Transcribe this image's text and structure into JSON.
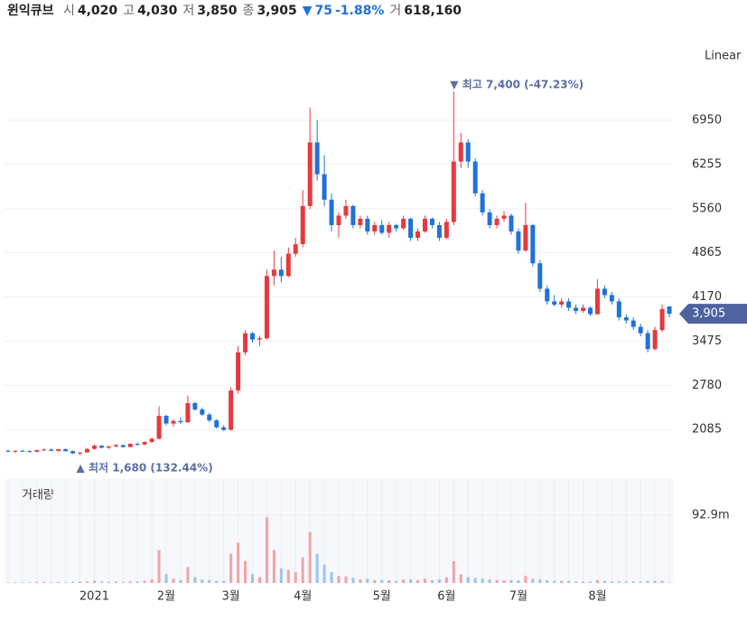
{
  "header": {
    "name": "윈익큐브",
    "fields": [
      {
        "label": "시",
        "value": "4,020"
      },
      {
        "label": "고",
        "value": "4,030"
      },
      {
        "label": "저",
        "value": "3,850"
      },
      {
        "label": "종",
        "value": "3,905"
      }
    ],
    "change": "75",
    "change_pct": "-1.88%",
    "volume_label": "거",
    "volume": "618,160"
  },
  "chart_data": {
    "type": "candlestick",
    "scale_label": "Linear",
    "volume_title": "거래량",
    "up_color": "#e5393e",
    "down_color": "#1f72d8",
    "volume_up_color": "#f2a3a6",
    "volume_down_color": "#9cc3ee",
    "ylim": [
      1448,
      8414
    ],
    "yticks": [
      2085,
      2780,
      3475,
      4170,
      4865,
      5560,
      6255,
      6950
    ],
    "vlim": [
      0,
      142
    ],
    "vticks": [
      {
        "value": 92.9,
        "label": "92.9m"
      }
    ],
    "high_note": {
      "label": "최고",
      "value": 7400,
      "value_label": "7,400",
      "change_label": "(-47.23%)"
    },
    "low_note": {
      "label": "최저",
      "value": 1680,
      "value_label": "1,680",
      "change_label": "(132.44%)"
    },
    "price_tag": {
      "value": 3905,
      "label": "3,905"
    },
    "categories": [
      null,
      null,
      null,
      null,
      null,
      null,
      null,
      null,
      null,
      null,
      null,
      null,
      "2021",
      null,
      null,
      null,
      null,
      null,
      null,
      null,
      null,
      null,
      "2월",
      null,
      null,
      null,
      null,
      null,
      null,
      null,
      null,
      "3월",
      null,
      null,
      null,
      null,
      null,
      null,
      null,
      null,
      null,
      "4월",
      null,
      null,
      null,
      null,
      null,
      null,
      null,
      null,
      null,
      null,
      "5월",
      null,
      null,
      null,
      null,
      null,
      null,
      null,
      null,
      "6월",
      null,
      null,
      null,
      null,
      null,
      null,
      null,
      null,
      null,
      "7월",
      null,
      null,
      null,
      null,
      null,
      null,
      null,
      null,
      null,
      null,
      "8월",
      null,
      null,
      null,
      null,
      null,
      null,
      null,
      null,
      null,
      null
    ],
    "candles": [
      {
        "o": 1750,
        "h": 1770,
        "l": 1730,
        "c": 1740,
        "v": 1
      },
      {
        "o": 1740,
        "h": 1760,
        "l": 1720,
        "c": 1750,
        "v": 1
      },
      {
        "o": 1750,
        "h": 1770,
        "l": 1735,
        "c": 1745,
        "v": 1
      },
      {
        "o": 1745,
        "h": 1760,
        "l": 1725,
        "c": 1735,
        "v": 1
      },
      {
        "o": 1735,
        "h": 1770,
        "l": 1730,
        "c": 1760,
        "v": 1.5
      },
      {
        "o": 1760,
        "h": 1790,
        "l": 1750,
        "c": 1770,
        "v": 1.5
      },
      {
        "o": 1770,
        "h": 1790,
        "l": 1745,
        "c": 1750,
        "v": 1
      },
      {
        "o": 1750,
        "h": 1780,
        "l": 1740,
        "c": 1775,
        "v": 1.5
      },
      {
        "o": 1775,
        "h": 1790,
        "l": 1740,
        "c": 1745,
        "v": 1
      },
      {
        "o": 1745,
        "h": 1755,
        "l": 1700,
        "c": 1710,
        "v": 1.5
      },
      {
        "o": 1710,
        "h": 1730,
        "l": 1680,
        "c": 1725,
        "v": 2
      },
      {
        "o": 1725,
        "h": 1790,
        "l": 1720,
        "c": 1780,
        "v": 2
      },
      {
        "o": 1780,
        "h": 1850,
        "l": 1770,
        "c": 1830,
        "v": 3
      },
      {
        "o": 1830,
        "h": 1840,
        "l": 1790,
        "c": 1800,
        "v": 2
      },
      {
        "o": 1800,
        "h": 1830,
        "l": 1780,
        "c": 1820,
        "v": 1.5
      },
      {
        "o": 1820,
        "h": 1860,
        "l": 1810,
        "c": 1840,
        "v": 2
      },
      {
        "o": 1840,
        "h": 1850,
        "l": 1800,
        "c": 1810,
        "v": 1.5
      },
      {
        "o": 1810,
        "h": 1870,
        "l": 1805,
        "c": 1860,
        "v": 2
      },
      {
        "o": 1860,
        "h": 1880,
        "l": 1830,
        "c": 1850,
        "v": 2
      },
      {
        "o": 1850,
        "h": 1900,
        "l": 1840,
        "c": 1890,
        "v": 3
      },
      {
        "o": 1890,
        "h": 1960,
        "l": 1870,
        "c": 1940,
        "v": 5
      },
      {
        "o": 1940,
        "h": 2450,
        "l": 1930,
        "c": 2300,
        "v": 45
      },
      {
        "o": 2300,
        "h": 2320,
        "l": 2150,
        "c": 2180,
        "v": 12
      },
      {
        "o": 2180,
        "h": 2250,
        "l": 2130,
        "c": 2220,
        "v": 6
      },
      {
        "o": 2220,
        "h": 2280,
        "l": 2170,
        "c": 2200,
        "v": 4
      },
      {
        "o": 2200,
        "h": 2620,
        "l": 2190,
        "c": 2500,
        "v": 22
      },
      {
        "o": 2500,
        "h": 2520,
        "l": 2380,
        "c": 2400,
        "v": 8
      },
      {
        "o": 2400,
        "h": 2430,
        "l": 2300,
        "c": 2320,
        "v": 5
      },
      {
        "o": 2320,
        "h": 2350,
        "l": 2200,
        "c": 2230,
        "v": 4
      },
      {
        "o": 2230,
        "h": 2250,
        "l": 2100,
        "c": 2120,
        "v": 3
      },
      {
        "o": 2120,
        "h": 2150,
        "l": 2060,
        "c": 2080,
        "v": 3
      },
      {
        "o": 2080,
        "h": 2750,
        "l": 2070,
        "c": 2700,
        "v": 40
      },
      {
        "o": 2700,
        "h": 3400,
        "l": 2650,
        "c": 3300,
        "v": 55
      },
      {
        "o": 3300,
        "h": 3650,
        "l": 3250,
        "c": 3600,
        "v": 30
      },
      {
        "o": 3600,
        "h": 3620,
        "l": 3450,
        "c": 3500,
        "v": 12
      },
      {
        "o": 3500,
        "h": 3560,
        "l": 3400,
        "c": 3520,
        "v": 8
      },
      {
        "o": 3520,
        "h": 4600,
        "l": 3500,
        "c": 4500,
        "v": 90
      },
      {
        "o": 4500,
        "h": 4900,
        "l": 4350,
        "c": 4600,
        "v": 45
      },
      {
        "o": 4600,
        "h": 4800,
        "l": 4400,
        "c": 4500,
        "v": 20
      },
      {
        "o": 4500,
        "h": 4950,
        "l": 4480,
        "c": 4850,
        "v": 18
      },
      {
        "o": 4850,
        "h": 5100,
        "l": 4800,
        "c": 5000,
        "v": 15
      },
      {
        "o": 5000,
        "h": 5850,
        "l": 4950,
        "c": 5600,
        "v": 35
      },
      {
        "o": 5600,
        "h": 7150,
        "l": 5550,
        "c": 6600,
        "v": 70
      },
      {
        "o": 6600,
        "h": 6950,
        "l": 6000,
        "c": 6100,
        "v": 40
      },
      {
        "o": 6100,
        "h": 6400,
        "l": 5600,
        "c": 5700,
        "v": 25
      },
      {
        "o": 5700,
        "h": 5800,
        "l": 5200,
        "c": 5300,
        "v": 15
      },
      {
        "o": 5300,
        "h": 5500,
        "l": 5100,
        "c": 5450,
        "v": 10
      },
      {
        "o": 5450,
        "h": 5700,
        "l": 5400,
        "c": 5600,
        "v": 9
      },
      {
        "o": 5600,
        "h": 5620,
        "l": 5250,
        "c": 5300,
        "v": 7
      },
      {
        "o": 5300,
        "h": 5450,
        "l": 5250,
        "c": 5400,
        "v": 5
      },
      {
        "o": 5400,
        "h": 5450,
        "l": 5150,
        "c": 5200,
        "v": 6
      },
      {
        "o": 5200,
        "h": 5350,
        "l": 5150,
        "c": 5300,
        "v": 4
      },
      {
        "o": 5300,
        "h": 5380,
        "l": 5150,
        "c": 5180,
        "v": 4
      },
      {
        "o": 5180,
        "h": 5350,
        "l": 5100,
        "c": 5300,
        "v": 4
      },
      {
        "o": 5300,
        "h": 5320,
        "l": 5200,
        "c": 5250,
        "v": 3
      },
      {
        "o": 5250,
        "h": 5450,
        "l": 5220,
        "c": 5400,
        "v": 5
      },
      {
        "o": 5400,
        "h": 5420,
        "l": 5050,
        "c": 5100,
        "v": 5
      },
      {
        "o": 5100,
        "h": 5250,
        "l": 5050,
        "c": 5200,
        "v": 4
      },
      {
        "o": 5200,
        "h": 5450,
        "l": 5180,
        "c": 5400,
        "v": 6
      },
      {
        "o": 5400,
        "h": 5420,
        "l": 5250,
        "c": 5300,
        "v": 4
      },
      {
        "o": 5300,
        "h": 5350,
        "l": 5050,
        "c": 5100,
        "v": 5
      },
      {
        "o": 5100,
        "h": 5400,
        "l": 5080,
        "c": 5350,
        "v": 8
      },
      {
        "o": 5350,
        "h": 7400,
        "l": 5300,
        "c": 6300,
        "v": 30
      },
      {
        "o": 6300,
        "h": 6750,
        "l": 6200,
        "c": 6600,
        "v": 12
      },
      {
        "o": 6600,
        "h": 6650,
        "l": 6200,
        "c": 6300,
        "v": 8
      },
      {
        "o": 6300,
        "h": 6350,
        "l": 5750,
        "c": 5800,
        "v": 7
      },
      {
        "o": 5800,
        "h": 5850,
        "l": 5450,
        "c": 5500,
        "v": 6
      },
      {
        "o": 5500,
        "h": 5550,
        "l": 5250,
        "c": 5300,
        "v": 5
      },
      {
        "o": 5300,
        "h": 5450,
        "l": 5250,
        "c": 5400,
        "v": 4
      },
      {
        "o": 5400,
        "h": 5520,
        "l": 5350,
        "c": 5450,
        "v": 4
      },
      {
        "o": 5450,
        "h": 5480,
        "l": 5150,
        "c": 5200,
        "v": 4
      },
      {
        "o": 5200,
        "h": 5250,
        "l": 4850,
        "c": 4900,
        "v": 4
      },
      {
        "o": 4900,
        "h": 5650,
        "l": 4880,
        "c": 5300,
        "v": 10
      },
      {
        "o": 5300,
        "h": 5320,
        "l": 4650,
        "c": 4700,
        "v": 6
      },
      {
        "o": 4700,
        "h": 4750,
        "l": 4250,
        "c": 4300,
        "v": 5
      },
      {
        "o": 4300,
        "h": 4350,
        "l": 4050,
        "c": 4100,
        "v": 4
      },
      {
        "o": 4100,
        "h": 4200,
        "l": 4020,
        "c": 4050,
        "v": 3
      },
      {
        "o": 4050,
        "h": 4150,
        "l": 4000,
        "c": 4100,
        "v": 3
      },
      {
        "o": 4100,
        "h": 4150,
        "l": 3950,
        "c": 4000,
        "v": 3
      },
      {
        "o": 4000,
        "h": 4050,
        "l": 3900,
        "c": 3950,
        "v": 2
      },
      {
        "o": 3950,
        "h": 4050,
        "l": 3920,
        "c": 4000,
        "v": 2
      },
      {
        "o": 4000,
        "h": 4020,
        "l": 3870,
        "c": 3900,
        "v": 2
      },
      {
        "o": 3900,
        "h": 4450,
        "l": 3890,
        "c": 4300,
        "v": 4
      },
      {
        "o": 4300,
        "h": 4350,
        "l": 4150,
        "c": 4200,
        "v": 3
      },
      {
        "o": 4200,
        "h": 4250,
        "l": 4050,
        "c": 4100,
        "v": 2
      },
      {
        "o": 4100,
        "h": 4150,
        "l": 3800,
        "c": 3850,
        "v": 2
      },
      {
        "o": 3850,
        "h": 3900,
        "l": 3750,
        "c": 3800,
        "v": 2
      },
      {
        "o": 3800,
        "h": 3850,
        "l": 3650,
        "c": 3700,
        "v": 2
      },
      {
        "o": 3700,
        "h": 3750,
        "l": 3550,
        "c": 3600,
        "v": 2
      },
      {
        "o": 3600,
        "h": 3650,
        "l": 3300,
        "c": 3350,
        "v": 3
      },
      {
        "o": 3350,
        "h": 3700,
        "l": 3330,
        "c": 3650,
        "v": 3
      },
      {
        "o": 3650,
        "h": 4050,
        "l": 3620,
        "c": 3980,
        "v": 3
      },
      {
        "o": 4020,
        "h": 4030,
        "l": 3850,
        "c": 3905,
        "v": 0.618
      }
    ]
  }
}
